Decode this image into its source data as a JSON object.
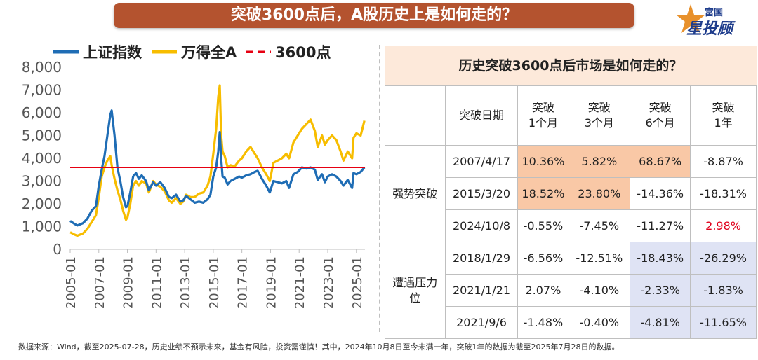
{
  "banner": {
    "title": "突破3600点后，A股历史上是如何走的？"
  },
  "logo": {
    "line1": "富国",
    "line2": "星投顾"
  },
  "chart_data": {
    "type": "line",
    "legend_placement": "top-left",
    "ylim": [
      0,
      8000
    ],
    "yticks": [
      "0",
      "1,000",
      "2,000",
      "3,000",
      "4,000",
      "5,000",
      "6,000",
      "7,000",
      "8,000"
    ],
    "yticks_values": [
      0,
      1000,
      2000,
      3000,
      4000,
      5000,
      6000,
      7000,
      8000
    ],
    "xlim": [
      2005.0,
      2025.6
    ],
    "xticks": [
      "2005-01",
      "2007-01",
      "2009-01",
      "2011-01",
      "2013-01",
      "2015-01",
      "2017-01",
      "2019-01",
      "2021-01",
      "2023-01",
      "2025-01"
    ],
    "xticks_values": [
      2005,
      2007,
      2009,
      2011,
      2013,
      2015,
      2017,
      2019,
      2021,
      2023,
      2025
    ],
    "series": [
      {
        "name": "上证指数",
        "color": "#1f6db5",
        "x": [
          2005.0,
          2005.3,
          2005.5,
          2005.9,
          2006.2,
          2006.5,
          2006.8,
          2007.0,
          2007.2,
          2007.4,
          2007.6,
          2007.8,
          2007.9,
          2008.1,
          2008.3,
          2008.5,
          2008.7,
          2008.9,
          2009.0,
          2009.2,
          2009.4,
          2009.6,
          2009.8,
          2010.0,
          2010.3,
          2010.5,
          2010.8,
          2011.0,
          2011.3,
          2011.6,
          2011.9,
          2012.1,
          2012.4,
          2012.7,
          2012.9,
          2013.1,
          2013.4,
          2013.7,
          2014.0,
          2014.3,
          2014.6,
          2014.8,
          2015.0,
          2015.2,
          2015.35,
          2015.45,
          2015.55,
          2015.65,
          2015.8,
          2016.0,
          2016.2,
          2016.5,
          2016.8,
          2017.0,
          2017.3,
          2017.6,
          2017.9,
          2018.1,
          2018.4,
          2018.7,
          2018.95,
          2019.2,
          2019.5,
          2019.8,
          2020.1,
          2020.3,
          2020.6,
          2020.9,
          2021.2,
          2021.5,
          2021.8,
          2022.1,
          2022.3,
          2022.6,
          2022.8,
          2023.0,
          2023.3,
          2023.6,
          2023.9,
          2024.1,
          2024.4,
          2024.7,
          2024.8,
          2025.0,
          2025.3,
          2025.56
        ],
        "y": [
          1250,
          1120,
          1050,
          1150,
          1350,
          1700,
          1900,
          2800,
          3500,
          4100,
          5000,
          5900,
          6100,
          5000,
          3600,
          3000,
          2300,
          1850,
          1900,
          2500,
          3200,
          3350,
          3100,
          3250,
          3000,
          2600,
          2950,
          2800,
          2950,
          2700,
          2300,
          2250,
          2400,
          2100,
          2150,
          2350,
          2200,
          2050,
          2100,
          2050,
          2200,
          2400,
          3200,
          3600,
          4300,
          5150,
          4000,
          3200,
          3150,
          2850,
          3000,
          3100,
          3200,
          3150,
          3250,
          3300,
          3400,
          3450,
          3100,
          2800,
          2500,
          3000,
          2950,
          2900,
          3000,
          2700,
          3300,
          3400,
          3600,
          3550,
          3600,
          3500,
          3050,
          3300,
          2950,
          3200,
          3300,
          3200,
          3000,
          2800,
          3050,
          2700,
          3350,
          3300,
          3400,
          3600
        ]
      },
      {
        "name": "万得全A",
        "color": "#f7bd00",
        "x": [
          2005.0,
          2005.3,
          2005.5,
          2005.9,
          2006.2,
          2006.5,
          2006.8,
          2007.0,
          2007.2,
          2007.4,
          2007.6,
          2007.8,
          2007.9,
          2008.1,
          2008.3,
          2008.5,
          2008.7,
          2008.9,
          2009.0,
          2009.2,
          2009.4,
          2009.6,
          2009.8,
          2010.0,
          2010.3,
          2010.5,
          2010.8,
          2011.0,
          2011.3,
          2011.6,
          2011.9,
          2012.1,
          2012.4,
          2012.7,
          2012.9,
          2013.1,
          2013.4,
          2013.7,
          2014.0,
          2014.3,
          2014.6,
          2014.8,
          2015.0,
          2015.2,
          2015.35,
          2015.45,
          2015.55,
          2015.65,
          2015.8,
          2016.0,
          2016.2,
          2016.5,
          2016.8,
          2017.0,
          2017.3,
          2017.6,
          2017.9,
          2018.1,
          2018.4,
          2018.7,
          2018.95,
          2019.2,
          2019.5,
          2019.8,
          2020.1,
          2020.3,
          2020.6,
          2020.9,
          2021.2,
          2021.5,
          2021.8,
          2022.1,
          2022.3,
          2022.6,
          2022.8,
          2023.0,
          2023.3,
          2023.6,
          2023.9,
          2024.1,
          2024.4,
          2024.7,
          2024.8,
          2025.0,
          2025.3,
          2025.56
        ],
        "y": [
          750,
          650,
          600,
          700,
          900,
          1200,
          1500,
          2300,
          3200,
          3600,
          3900,
          4100,
          3700,
          3100,
          2600,
          2200,
          1700,
          1300,
          1400,
          2000,
          2800,
          3000,
          2800,
          3000,
          2900,
          2500,
          3000,
          2850,
          2750,
          2550,
          2150,
          2050,
          2250,
          2000,
          2100,
          2400,
          2300,
          2300,
          2450,
          2500,
          2800,
          3200,
          4200,
          5300,
          6700,
          7200,
          5000,
          4300,
          4100,
          3600,
          3700,
          3650,
          3900,
          4000,
          4300,
          4500,
          4200,
          4000,
          3600,
          3300,
          3000,
          3800,
          3900,
          4000,
          4200,
          4000,
          4700,
          5000,
          5300,
          5500,
          5700,
          5200,
          4500,
          5000,
          4600,
          4800,
          5000,
          4800,
          4300,
          3900,
          4300,
          4000,
          4900,
          5100,
          5000,
          5650
        ]
      },
      {
        "name": "3600点",
        "color": "#e60012",
        "style": "dashed-legend",
        "y": 3600
      }
    ]
  },
  "table": {
    "title": "历史突破3600点后市场是如何走的？",
    "headers": {
      "date": "突破日期",
      "m1a": "突破",
      "m1b": "1个月",
      "m3a": "突破",
      "m3b": "3个月",
      "m6a": "突破",
      "m6b": "6个月",
      "y1a": "突破",
      "y1b": "1年"
    },
    "group_strong": "强势突破",
    "group_pressure_a": "遭遇压力",
    "group_pressure_b": "位",
    "rows": [
      {
        "date": "2007/4/17",
        "m1": "10.36%",
        "m3": "5.82%",
        "m6": "68.67%",
        "y1": "-8.87%"
      },
      {
        "date": "2015/3/20",
        "m1": "18.52%",
        "m3": "23.80%",
        "m6": "-14.36%",
        "y1": "-18.31%"
      },
      {
        "date": "2024/10/8",
        "m1": "-0.55%",
        "m3": "-7.45%",
        "m6": "-11.27%",
        "y1": "2.98%"
      },
      {
        "date": "2018/1/29",
        "m1": "-6.56%",
        "m3": "-12.51%",
        "m6": "-18.43%",
        "y1": "-26.29%"
      },
      {
        "date": "2021/1/21",
        "m1": "2.07%",
        "m3": "-4.10%",
        "m6": "-2.33%",
        "y1": "-1.83%"
      },
      {
        "date": "2021/9/6",
        "m1": "-1.48%",
        "m3": "-0.40%",
        "m6": "-4.81%",
        "y1": "-11.65%"
      }
    ],
    "colors": {
      "highlight_orange": "#f9c8a6",
      "highlight_blue": "#dfe3f4",
      "highlight_red_text": "#e0001b",
      "title_bg": "#fde9da"
    }
  },
  "footnote": "数据来源：Wind，截至2025-07-28，历史业绩不预示未来，基金有风险，投资需谨慎！其中，2024年10月8日至今未满一年，突破1年的数据为截至2025年7月28日的数据。",
  "colors": {
    "banner": "#b4532f",
    "logo_orange": "#e8912c",
    "logo_blue": "#1f3d8c"
  }
}
